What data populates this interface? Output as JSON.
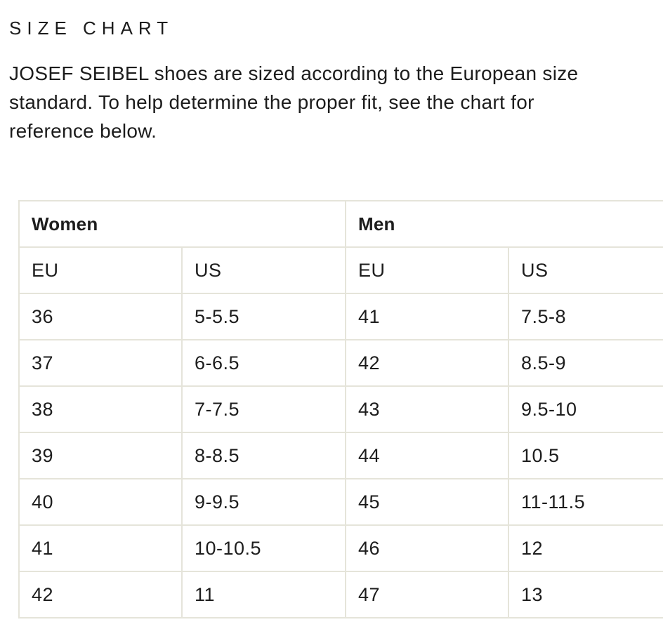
{
  "page": {
    "title": "SIZE CHART",
    "intro_lines": [
      "JOSEF SEIBEL shoes are sized according to the European size",
      "standard. To help determine the proper fit, see the chart for",
      "reference below."
    ]
  },
  "table": {
    "group_headers": [
      "Women",
      "Men"
    ],
    "column_headers": [
      "EU",
      "US",
      "EU",
      "US"
    ],
    "rows": [
      [
        "36",
        "5-5.5",
        "41",
        "7.5-8"
      ],
      [
        "37",
        "6-6.5",
        "42",
        "8.5-9"
      ],
      [
        "38",
        "7-7.5",
        "43",
        "9.5-10"
      ],
      [
        "39",
        "8-8.5",
        "44",
        "10.5"
      ],
      [
        "40",
        "9-9.5",
        "45",
        "11-11.5"
      ],
      [
        "41",
        "10-10.5",
        "46",
        "12"
      ],
      [
        "42",
        "11",
        "47",
        "13"
      ]
    ]
  },
  "colors": {
    "background": "#ffffff",
    "cell_background": "#ffffff",
    "table_border": "#e5e4da",
    "text": "#1d1d1d"
  }
}
